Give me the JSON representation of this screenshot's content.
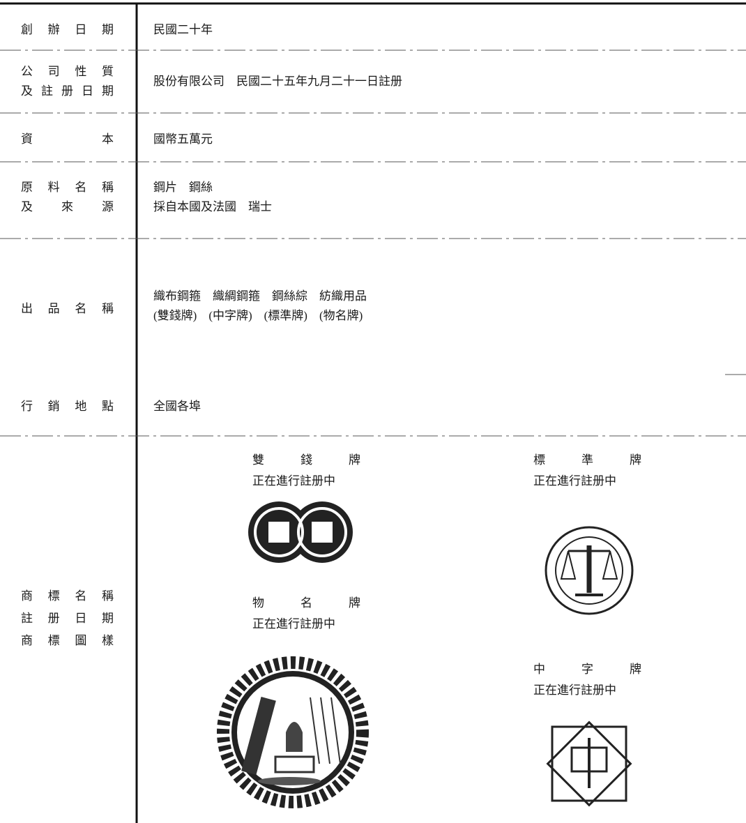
{
  "rows": [
    {
      "label": [
        "創辦日期"
      ],
      "value": [
        "民國二十年"
      ]
    },
    {
      "label": [
        "公司性質",
        "及註册日期"
      ],
      "value": [
        "股份有限公司　民國二十五年九月二十一日註册"
      ]
    },
    {
      "label": [
        "資本"
      ],
      "value": [
        "國幣五萬元"
      ]
    },
    {
      "label": [
        "原料名稱",
        "及來源"
      ],
      "value": [
        "鋼片　鋼絲",
        "採自本國及法國　瑞士"
      ]
    },
    {
      "label": [
        "出品名稱"
      ],
      "value": [
        "織布鋼箍　織綢鋼箍　鋼絲綜　紡織用品",
        "(雙錢牌)　(中字牌)　(標準牌)　(物名牌)"
      ]
    },
    {
      "label": [
        "行銷地點"
      ],
      "value": [
        "全國各埠"
      ]
    },
    {
      "label": [
        "商標名稱",
        "註册日期",
        "商標圖樣"
      ],
      "value": []
    }
  ],
  "trademarks": [
    {
      "name": "雙錢牌",
      "status": "正在進行註册中"
    },
    {
      "name": "標準牌",
      "status": "正在進行註册中"
    },
    {
      "name": "物名牌",
      "status": "正在進行註册中"
    },
    {
      "name": "中字牌",
      "status": "正在進行註册中"
    }
  ]
}
